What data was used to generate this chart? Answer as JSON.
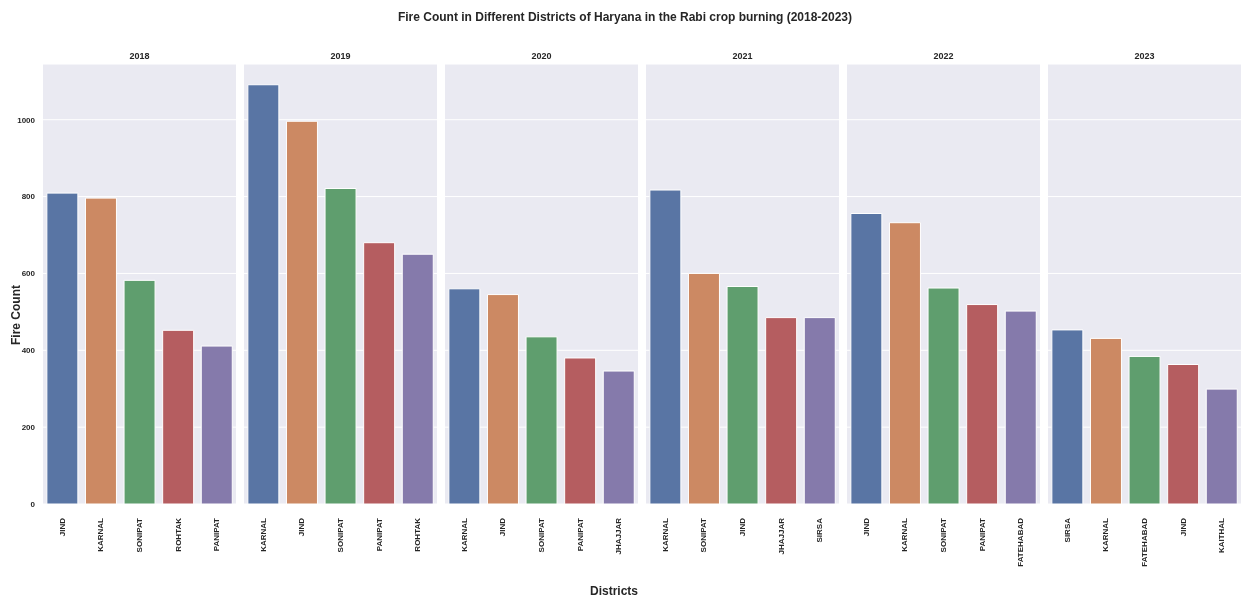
{
  "chart_data": [
    {
      "type": "bar",
      "title": "2018",
      "ylabel": "Fire Count",
      "annotations": [
        "Fire Count in Different Districts of Haryana in the Rabi crop burning (2018-2023)"
      ],
      "categories": [
        "JIND",
        "KARNAL",
        "SONIPAT",
        "ROHTAK",
        "PANIPAT"
      ],
      "values": [
        809,
        796,
        582,
        452,
        411
      ],
      "colors": [
        "#5975a4",
        "#cc8963",
        "#5f9e6e",
        "#b55d60",
        "#857aab"
      ],
      "ylim": [
        0,
        1145
      ],
      "yticks": [
        0,
        200,
        400,
        600,
        800,
        1000
      ],
      "grid": "y"
    },
    {
      "type": "bar",
      "title": "2019",
      "categories": [
        "KARNAL",
        "JIND",
        "SONIPAT",
        "PANIPAT",
        "ROHTAK"
      ],
      "values": [
        1091,
        996,
        821,
        680,
        650
      ],
      "colors": [
        "#5975a4",
        "#cc8963",
        "#5f9e6e",
        "#b55d60",
        "#857aab"
      ],
      "ylim": [
        0,
        1145
      ],
      "yticks": [
        0,
        200,
        400,
        600,
        800,
        1000
      ],
      "grid": "y",
      "tick_labels": "x"
    },
    {
      "type": "bar",
      "title": "2020",
      "xlabel": "Districts",
      "categories": [
        "KARNAL",
        "JIND",
        "SONIPAT",
        "PANIPAT",
        "JHAJJAR"
      ],
      "values": [
        560,
        545,
        435,
        380,
        346
      ],
      "colors": [
        "#5975a4",
        "#cc8963",
        "#5f9e6e",
        "#b55d60",
        "#857aab"
      ],
      "ylim": [
        0,
        1145
      ],
      "yticks": [
        0,
        200,
        400,
        600,
        800,
        1000
      ],
      "grid": "y",
      "tick_labels": "x"
    },
    {
      "type": "bar",
      "title": "2021",
      "categories": [
        "KARNAL",
        "SONIPAT",
        "JIND",
        "JHAJJAR",
        "SIRSA"
      ],
      "values": [
        817,
        600,
        566,
        485,
        485
      ],
      "colors": [
        "#5975a4",
        "#cc8963",
        "#5f9e6e",
        "#b55d60",
        "#857aab"
      ],
      "ylim": [
        0,
        1145
      ],
      "yticks": [
        0,
        200,
        400,
        600,
        800,
        1000
      ],
      "grid": "y",
      "tick_labels": "x"
    },
    {
      "type": "bar",
      "title": "2022",
      "categories": [
        "JIND",
        "KARNAL",
        "SONIPAT",
        "PANIPAT",
        "FATEHABAD"
      ],
      "values": [
        756,
        732,
        562,
        519,
        502
      ],
      "colors": [
        "#5975a4",
        "#cc8963",
        "#5f9e6e",
        "#b55d60",
        "#857aab"
      ],
      "ylim": [
        0,
        1145
      ],
      "yticks": [
        0,
        200,
        400,
        600,
        800,
        1000
      ],
      "grid": "y",
      "tick_labels": "x"
    },
    {
      "type": "bar",
      "title": "2023",
      "categories": [
        "SIRSA",
        "KARNAL",
        "FATEHABAD",
        "JIND",
        "KAITHAL"
      ],
      "values": [
        453,
        431,
        384,
        363,
        299
      ],
      "colors": [
        "#5975a4",
        "#cc8963",
        "#5f9e6e",
        "#b55d60",
        "#857aab"
      ],
      "ylim": [
        0,
        1145
      ],
      "yticks": [
        0,
        200,
        400,
        600,
        800,
        1000
      ],
      "grid": "y",
      "tick_labels": "x"
    }
  ]
}
